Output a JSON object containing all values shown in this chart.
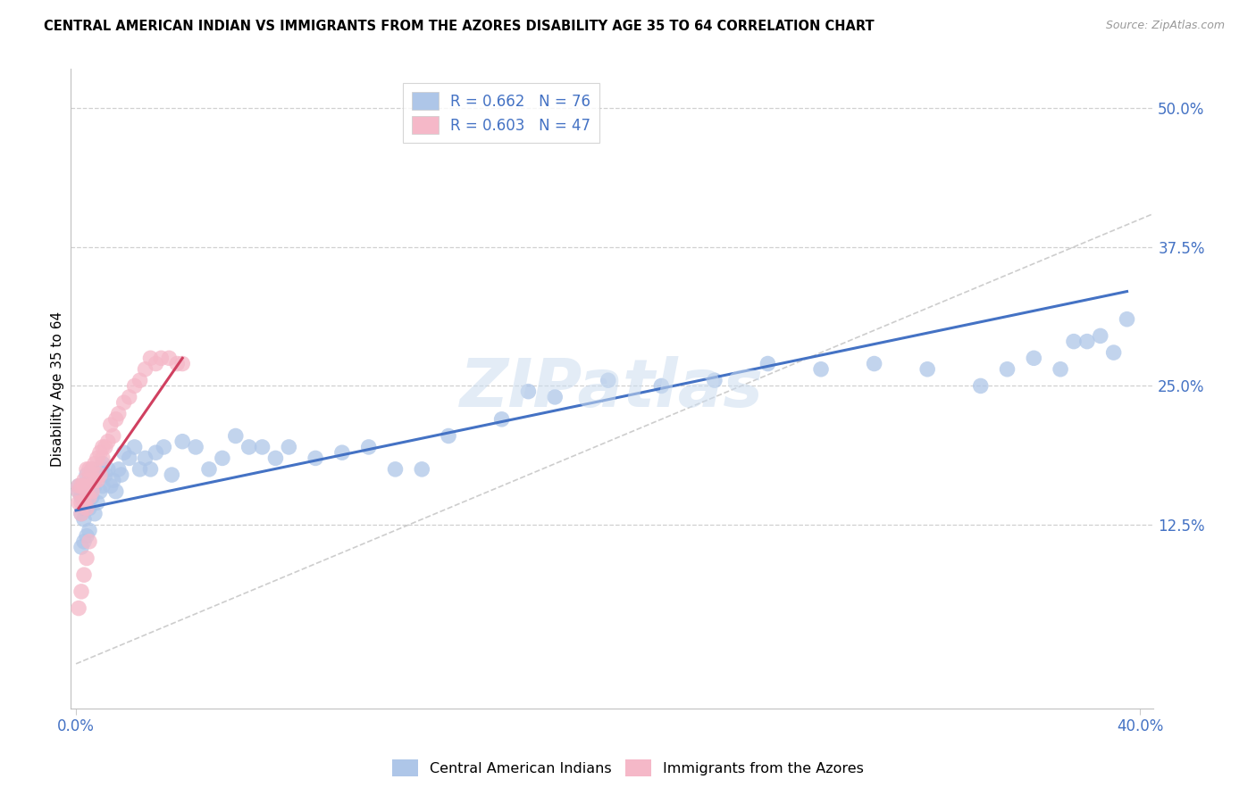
{
  "title": "CENTRAL AMERICAN INDIAN VS IMMIGRANTS FROM THE AZORES DISABILITY AGE 35 TO 64 CORRELATION CHART",
  "source": "Source: ZipAtlas.com",
  "ylabel": "Disability Age 35 to 64",
  "xlim": [
    -0.002,
    0.405
  ],
  "ylim": [
    -0.04,
    0.535
  ],
  "xtick_labels": [
    "0.0%",
    "40.0%"
  ],
  "xtick_positions": [
    0.0,
    0.4
  ],
  "ytick_labels": [
    "12.5%",
    "25.0%",
    "37.5%",
    "50.0%"
  ],
  "ytick_positions": [
    0.125,
    0.25,
    0.375,
    0.5
  ],
  "blue_color": "#aec6e8",
  "pink_color": "#f5b8c8",
  "line_blue": "#4472c4",
  "line_pink": "#d04060",
  "diagonal_color": "#c8c8c8",
  "R_blue": 0.662,
  "N_blue": 76,
  "R_pink": 0.603,
  "N_pink": 47,
  "legend_label_blue": "Central American Indians",
  "legend_label_pink": "Immigrants from the Azores",
  "watermark": "ZIPatlas",
  "blue_x": [
    0.001,
    0.001,
    0.002,
    0.002,
    0.003,
    0.003,
    0.003,
    0.004,
    0.004,
    0.004,
    0.005,
    0.005,
    0.005,
    0.006,
    0.006,
    0.007,
    0.007,
    0.008,
    0.008,
    0.009,
    0.01,
    0.01,
    0.011,
    0.012,
    0.013,
    0.014,
    0.015,
    0.016,
    0.017,
    0.018,
    0.02,
    0.022,
    0.024,
    0.026,
    0.028,
    0.03,
    0.033,
    0.036,
    0.04,
    0.045,
    0.05,
    0.055,
    0.06,
    0.065,
    0.07,
    0.075,
    0.08,
    0.09,
    0.1,
    0.11,
    0.12,
    0.13,
    0.14,
    0.16,
    0.17,
    0.18,
    0.2,
    0.22,
    0.24,
    0.26,
    0.28,
    0.3,
    0.32,
    0.34,
    0.35,
    0.36,
    0.37,
    0.375,
    0.38,
    0.385,
    0.39,
    0.395,
    0.002,
    0.003,
    0.004,
    0.005
  ],
  "blue_y": [
    0.155,
    0.16,
    0.135,
    0.15,
    0.14,
    0.155,
    0.13,
    0.145,
    0.16,
    0.17,
    0.14,
    0.155,
    0.165,
    0.15,
    0.175,
    0.135,
    0.16,
    0.145,
    0.17,
    0.155,
    0.16,
    0.18,
    0.17,
    0.175,
    0.16,
    0.165,
    0.155,
    0.175,
    0.17,
    0.19,
    0.185,
    0.195,
    0.175,
    0.185,
    0.175,
    0.19,
    0.195,
    0.17,
    0.2,
    0.195,
    0.175,
    0.185,
    0.205,
    0.195,
    0.195,
    0.185,
    0.195,
    0.185,
    0.19,
    0.195,
    0.175,
    0.175,
    0.205,
    0.22,
    0.245,
    0.24,
    0.255,
    0.25,
    0.255,
    0.27,
    0.265,
    0.27,
    0.265,
    0.25,
    0.265,
    0.275,
    0.265,
    0.29,
    0.29,
    0.295,
    0.28,
    0.31,
    0.105,
    0.11,
    0.115,
    0.12
  ],
  "pink_x": [
    0.001,
    0.001,
    0.001,
    0.002,
    0.002,
    0.002,
    0.003,
    0.003,
    0.003,
    0.004,
    0.004,
    0.004,
    0.005,
    0.005,
    0.005,
    0.006,
    0.006,
    0.007,
    0.007,
    0.008,
    0.008,
    0.009,
    0.009,
    0.01,
    0.01,
    0.011,
    0.012,
    0.013,
    0.014,
    0.015,
    0.016,
    0.018,
    0.02,
    0.022,
    0.024,
    0.026,
    0.028,
    0.03,
    0.032,
    0.035,
    0.038,
    0.04,
    0.001,
    0.002,
    0.003,
    0.004,
    0.005
  ],
  "pink_y": [
    0.145,
    0.155,
    0.16,
    0.135,
    0.145,
    0.16,
    0.145,
    0.16,
    0.165,
    0.14,
    0.155,
    0.175,
    0.15,
    0.165,
    0.175,
    0.155,
    0.175,
    0.165,
    0.18,
    0.165,
    0.185,
    0.17,
    0.19,
    0.185,
    0.195,
    0.195,
    0.2,
    0.215,
    0.205,
    0.22,
    0.225,
    0.235,
    0.24,
    0.25,
    0.255,
    0.265,
    0.275,
    0.27,
    0.275,
    0.275,
    0.27,
    0.27,
    0.05,
    0.065,
    0.08,
    0.095,
    0.11
  ],
  "blue_line_x": [
    0.0,
    0.395
  ],
  "blue_line_y": [
    0.138,
    0.335
  ],
  "pink_line_x": [
    0.001,
    0.04
  ],
  "pink_line_y": [
    0.14,
    0.275
  ]
}
